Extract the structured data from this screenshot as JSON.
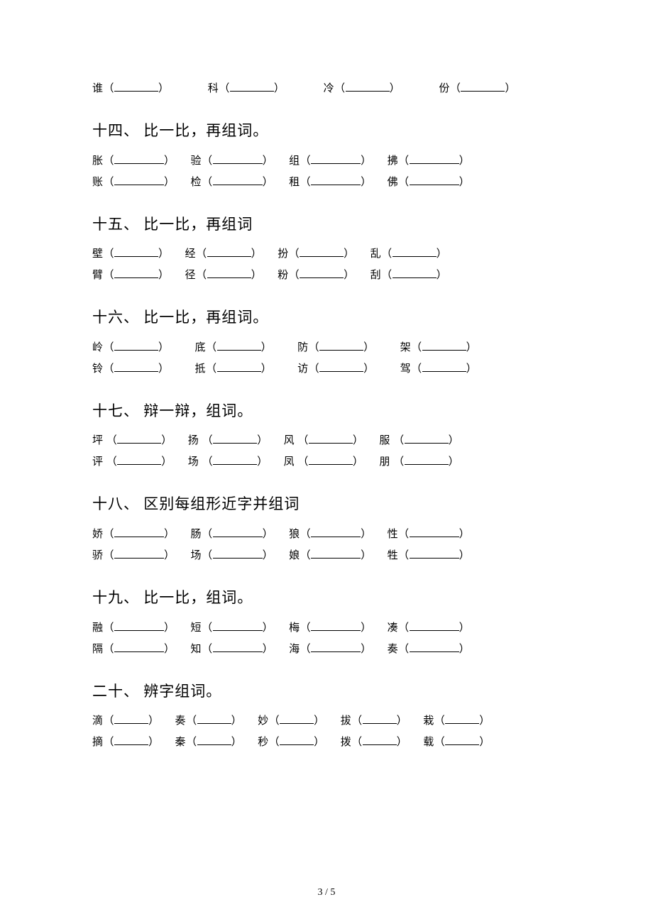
{
  "orphan_row": {
    "items": [
      {
        "char": "谁"
      },
      {
        "char": "科"
      },
      {
        "char": "冷"
      },
      {
        "char": "份"
      }
    ]
  },
  "sections": [
    {
      "title": "十四、 比一比，再组词。",
      "rows": [
        [
          {
            "char": "胀"
          },
          {
            "char": "验"
          },
          {
            "char": "组"
          },
          {
            "char": "拂"
          }
        ],
        [
          {
            "char": "账"
          },
          {
            "char": "检"
          },
          {
            "char": "租"
          },
          {
            "char": "佛"
          }
        ]
      ],
      "blank": "b-lg",
      "gap": "gap-sm"
    },
    {
      "title": "十五、 比一比，再组词",
      "rows": [
        [
          {
            "char": "壁"
          },
          {
            "char": "经"
          },
          {
            "char": "扮"
          },
          {
            "char": "乱"
          }
        ],
        [
          {
            "char": "臂"
          },
          {
            "char": "径"
          },
          {
            "char": "粉"
          },
          {
            "char": "刮"
          }
        ]
      ],
      "blank": "b-md",
      "gap": "gap-sm"
    },
    {
      "title": "十六、 比一比，再组词。",
      "rows": [
        [
          {
            "char": "岭"
          },
          {
            "char": "底"
          },
          {
            "char": "防"
          },
          {
            "char": "架"
          }
        ],
        [
          {
            "char": "铃"
          },
          {
            "char": "抵"
          },
          {
            "char": "访"
          },
          {
            "char": "驾"
          }
        ]
      ],
      "blank": "b-md",
      "gap": "gap-md"
    },
    {
      "title": "十七、 辩一辩，组词。",
      "rows": [
        [
          {
            "char": "坪"
          },
          {
            "char": "扬"
          },
          {
            "char": "风"
          },
          {
            "char": "服"
          }
        ],
        [
          {
            "char": "评"
          },
          {
            "char": "场"
          },
          {
            "char": "凤"
          },
          {
            "char": "朋"
          }
        ]
      ],
      "blank": "b-md",
      "gap": "gap-sm",
      "leading_space": true
    },
    {
      "title": "十八、 区别每组形近字并组词",
      "rows": [
        [
          {
            "char": "娇"
          },
          {
            "char": "肠"
          },
          {
            "char": "狼"
          },
          {
            "char": "性"
          }
        ],
        [
          {
            "char": "骄"
          },
          {
            "char": "场"
          },
          {
            "char": "娘"
          },
          {
            "char": "牲"
          }
        ]
      ],
      "blank": "b-lg",
      "gap": "gap-sm"
    },
    {
      "title": "十九、 比一比，组词。",
      "rows": [
        [
          {
            "char": "融"
          },
          {
            "char": "短"
          },
          {
            "char": "梅"
          },
          {
            "char": "凑"
          }
        ],
        [
          {
            "char": "隔"
          },
          {
            "char": "知"
          },
          {
            "char": "海"
          },
          {
            "char": "奏"
          }
        ]
      ],
      "blank": "b-lg",
      "gap": "gap-sm"
    },
    {
      "title": "二十、 辨字组词。",
      "rows": [
        [
          {
            "char": "滴"
          },
          {
            "char": "奏"
          },
          {
            "char": "妙"
          },
          {
            "char": "拔"
          },
          {
            "char": "栽"
          }
        ],
        [
          {
            "char": "摘"
          },
          {
            "char": "秦"
          },
          {
            "char": "秒"
          },
          {
            "char": "拨"
          },
          {
            "char": "载"
          }
        ]
      ],
      "blank": "b-sm",
      "gap": "gap-sm"
    }
  ],
  "page_number": "3 / 5"
}
